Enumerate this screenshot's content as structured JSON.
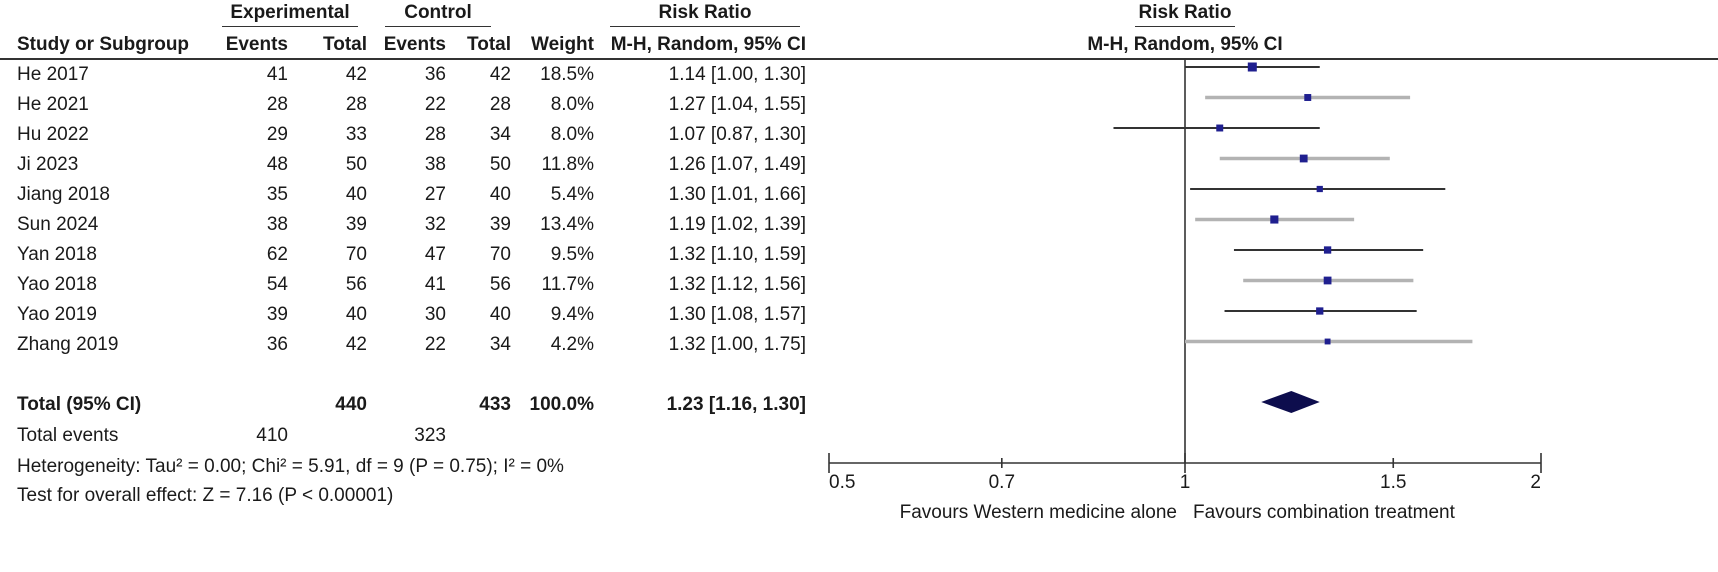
{
  "table": {
    "group_experimental": "Experimental",
    "group_control": "Control",
    "group_risk_ratio": "Risk Ratio",
    "col_study": "Study or Subgroup",
    "col_exp_events": "Events",
    "col_exp_total": "Total",
    "col_ctl_events": "Events",
    "col_ctl_total": "Total",
    "col_weight": "Weight",
    "col_ci": "M-H, Random, 95% CI",
    "rows": [
      {
        "study": "He 2017",
        "exp_events": "41",
        "exp_total": "42",
        "ctl_events": "36",
        "ctl_total": "42",
        "weight": "18.5%",
        "ci": "1.14 [1.00, 1.30]"
      },
      {
        "study": "He 2021",
        "exp_events": "28",
        "exp_total": "28",
        "ctl_events": "22",
        "ctl_total": "28",
        "weight": "8.0%",
        "ci": "1.27 [1.04, 1.55]"
      },
      {
        "study": "Hu 2022",
        "exp_events": "29",
        "exp_total": "33",
        "ctl_events": "28",
        "ctl_total": "34",
        "weight": "8.0%",
        "ci": "1.07 [0.87, 1.30]"
      },
      {
        "study": "Ji 2023",
        "exp_events": "48",
        "exp_total": "50",
        "ctl_events": "38",
        "ctl_total": "50",
        "weight": "11.8%",
        "ci": "1.26 [1.07, 1.49]"
      },
      {
        "study": "Jiang 2018",
        "exp_events": "35",
        "exp_total": "40",
        "ctl_events": "27",
        "ctl_total": "40",
        "weight": "5.4%",
        "ci": "1.30 [1.01, 1.66]"
      },
      {
        "study": "Sun 2024",
        "exp_events": "38",
        "exp_total": "39",
        "ctl_events": "32",
        "ctl_total": "39",
        "weight": "13.4%",
        "ci": "1.19 [1.02, 1.39]"
      },
      {
        "study": "Yan 2018",
        "exp_events": "62",
        "exp_total": "70",
        "ctl_events": "47",
        "ctl_total": "70",
        "weight": "9.5%",
        "ci": "1.32 [1.10, 1.59]"
      },
      {
        "study": "Yao 2018",
        "exp_events": "54",
        "exp_total": "56",
        "ctl_events": "41",
        "ctl_total": "56",
        "weight": "11.7%",
        "ci": "1.32 [1.12, 1.56]"
      },
      {
        "study": "Yao 2019",
        "exp_events": "39",
        "exp_total": "40",
        "ctl_events": "30",
        "ctl_total": "40",
        "weight": "9.4%",
        "ci": "1.30 [1.08, 1.57]"
      },
      {
        "study": "Zhang 2019",
        "exp_events": "36",
        "exp_total": "42",
        "ctl_events": "22",
        "ctl_total": "34",
        "weight": "4.2%",
        "ci": "1.32 [1.00, 1.75]"
      }
    ],
    "total_label": "Total (95% CI)",
    "total_exp_total": "440",
    "total_ctl_total": "433",
    "total_weight": "100.0%",
    "total_ci": "1.23 [1.16, 1.30]",
    "events_label": "Total events",
    "events_exp": "410",
    "events_ctl": "323",
    "heterogeneity": "Heterogeneity: Tau² = 0.00; Chi² = 5.91, df = 9 (P = 0.75); I² = 0%",
    "overall_effect": "Test for overall effect: Z = 7.16 (P < 0.00001)"
  },
  "chart_data": {
    "type": "forest",
    "title": "Risk Ratio",
    "subtitle": "M-H, Random, 95% CI",
    "scale": "log",
    "xlim": [
      0.5,
      2
    ],
    "ticks": [
      0.5,
      0.7,
      1,
      1.5,
      2
    ],
    "tick_labels": [
      "0.5",
      "0.7",
      "1",
      "1.5",
      "2"
    ],
    "null_line": 1,
    "favours_left": "Favours Western medicine alone",
    "favours_right": "Favours combination treatment",
    "studies": [
      {
        "name": "He 2017",
        "rr": 1.14,
        "lo": 1.0,
        "hi": 1.3,
        "weight": 18.5
      },
      {
        "name": "He 2021",
        "rr": 1.27,
        "lo": 1.04,
        "hi": 1.55,
        "weight": 8.0
      },
      {
        "name": "Hu 2022",
        "rr": 1.07,
        "lo": 0.87,
        "hi": 1.3,
        "weight": 8.0
      },
      {
        "name": "Ji 2023",
        "rr": 1.26,
        "lo": 1.07,
        "hi": 1.49,
        "weight": 11.8
      },
      {
        "name": "Jiang 2018",
        "rr": 1.3,
        "lo": 1.01,
        "hi": 1.66,
        "weight": 5.4
      },
      {
        "name": "Sun 2024",
        "rr": 1.19,
        "lo": 1.02,
        "hi": 1.39,
        "weight": 13.4
      },
      {
        "name": "Yan 2018",
        "rr": 1.32,
        "lo": 1.1,
        "hi": 1.59,
        "weight": 9.5
      },
      {
        "name": "Yao 2018",
        "rr": 1.32,
        "lo": 1.12,
        "hi": 1.56,
        "weight": 11.7
      },
      {
        "name": "Yao 2019",
        "rr": 1.3,
        "lo": 1.08,
        "hi": 1.57,
        "weight": 9.4
      },
      {
        "name": "Zhang 2019",
        "rr": 1.32,
        "lo": 1.0,
        "hi": 1.75,
        "weight": 4.2
      }
    ],
    "pooled": {
      "rr": 1.23,
      "lo": 1.16,
      "hi": 1.3
    },
    "colors": {
      "ci_dark": "#333333",
      "ci_light": "#b3b3b3",
      "square": "#1f1f8f",
      "diamond": "#0d0d4d",
      "axis": "#333333"
    }
  }
}
